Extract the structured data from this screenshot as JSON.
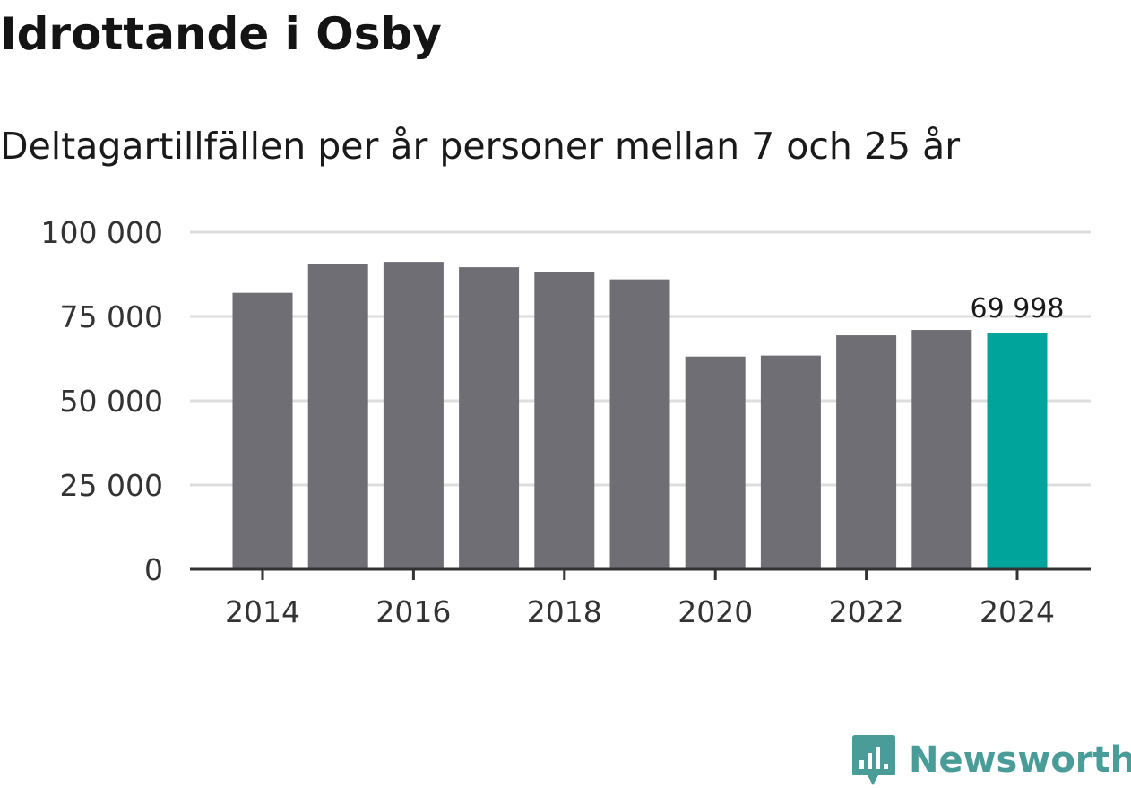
{
  "header": {
    "title": "Idrottande i Osby",
    "subtitle": "Deltagartillfällen per år personer mellan 7 och 25 år"
  },
  "brand": {
    "name": "Newsworthy",
    "icon": "newsworthy-logo-icon",
    "color": "#4a9c98"
  },
  "colors": {
    "bar": "#6f6e74",
    "highlight": "#00a49a",
    "grid": "#dddddd",
    "axis": "#333333"
  },
  "chart_data": {
    "type": "bar",
    "title": "Idrottande i Osby",
    "subtitle": "Deltagartillfällen per år personer mellan 7 och 25 år",
    "xlabel": "",
    "ylabel": "",
    "categories": [
      "2014",
      "2015",
      "2016",
      "2017",
      "2018",
      "2019",
      "2020",
      "2021",
      "2022",
      "2023",
      "2024"
    ],
    "values": [
      82000,
      90600,
      91200,
      89600,
      88300,
      86000,
      63100,
      63400,
      69400,
      71000,
      69998
    ],
    "highlight_index": 10,
    "highlight_label": "69 998",
    "ylim": [
      0,
      100000
    ],
    "yticks": [
      0,
      25000,
      50000,
      75000,
      100000
    ],
    "ytick_labels": [
      "0",
      "25 000",
      "50 000",
      "75 000",
      "100 000"
    ],
    "xticks": [
      "2014",
      "2016",
      "2018",
      "2020",
      "2022",
      "2024"
    ],
    "grid": true,
    "legend": "none"
  }
}
